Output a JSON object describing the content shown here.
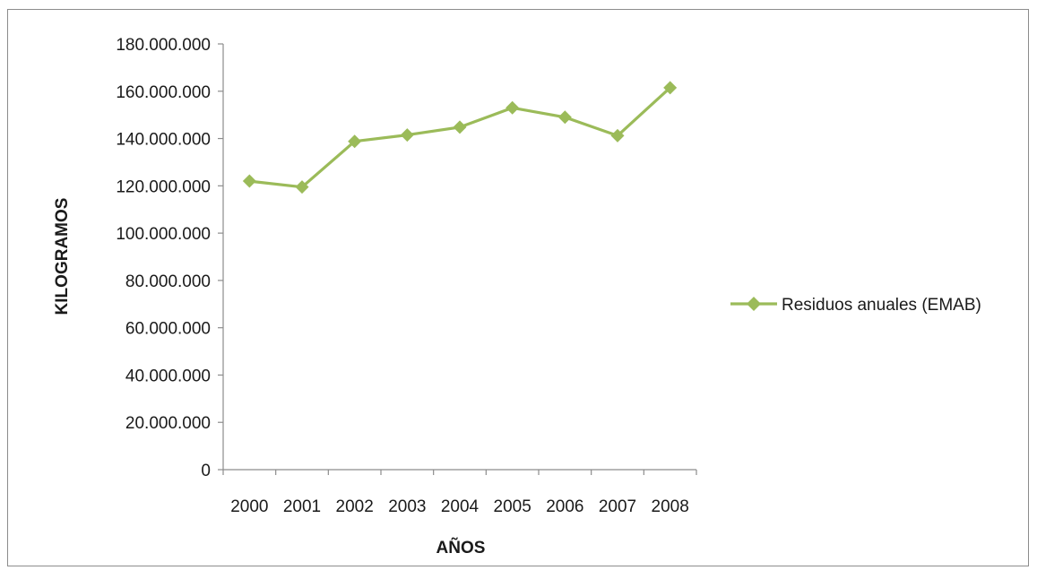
{
  "chart_data": {
    "type": "line",
    "title": "",
    "xlabel": "AÑOS",
    "ylabel": "KILOGRAMOS",
    "categories": [
      "2000",
      "2001",
      "2002",
      "2003",
      "2004",
      "2005",
      "2006",
      "2007",
      "2008"
    ],
    "series": [
      {
        "name": "Residuos anuales (EMAB)",
        "values": [
          122000000,
          119500000,
          138800000,
          141500000,
          144800000,
          153000000,
          149000000,
          141200000,
          161500000
        ]
      }
    ],
    "ylim": [
      0,
      180000000
    ],
    "yticks": [
      0,
      20000000,
      40000000,
      60000000,
      80000000,
      100000000,
      120000000,
      140000000,
      160000000,
      180000000
    ],
    "ytick_labels": [
      "0",
      "20.000.000",
      "40.000.000",
      "60.000.000",
      "80.000.000",
      "100.000.000",
      "120.000.000",
      "140.000.000",
      "160.000.000",
      "180.000.000"
    ],
    "grid": false,
    "legend_position": "right",
    "line_color": "#9bbb59"
  }
}
